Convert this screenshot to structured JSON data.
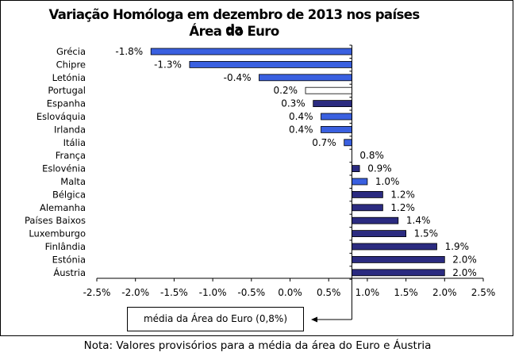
{
  "chart_data": {
    "type": "bar",
    "orientation": "horizontal",
    "title_line1": "Variação Homóloga em dezembro de 2013 nos países da",
    "title_line2": "Área do Euro",
    "categories": [
      "Grécia",
      "Chipre",
      "Letónia",
      "Portugal",
      "Espanha",
      "Eslováquia",
      "Irlanda",
      "Itália",
      "França",
      "Eslovénia",
      "Malta",
      "Bélgica",
      "Alemanha",
      "Países Baixos",
      "Luxemburgo",
      "Finlândia",
      "Estónia",
      "Áustria"
    ],
    "values": [
      -1.8,
      -1.3,
      -0.4,
      0.2,
      0.3,
      0.4,
      0.4,
      0.7,
      0.8,
      0.9,
      1.0,
      1.2,
      1.2,
      1.4,
      1.5,
      1.9,
      2.0,
      2.0
    ],
    "value_labels": [
      "-1.8%",
      "-1.3%",
      "-0.4%",
      "0.2%",
      "0.3%",
      "0.4%",
      "0.4%",
      "0.7%",
      "0.8%",
      "0.9%",
      "1.0%",
      "1.2%",
      "1.2%",
      "1.4%",
      "1.5%",
      "1.9%",
      "2.0%",
      "2.0%"
    ],
    "bar_colors": [
      "#3a60e0",
      "#3a60e0",
      "#3a60e0",
      "#ffffff",
      "#2b2b80",
      "#3a60e0",
      "#3a60e0",
      "#3a60e0",
      "#ffffff",
      "#2b2b80",
      "#3a60e0",
      "#2b2b80",
      "#2b2b80",
      "#2b2b80",
      "#2b2b80",
      "#2b2b80",
      "#2b2b80",
      "#2b2b80"
    ],
    "euro_area_mean": 0.8,
    "xlim": [
      -2.5,
      2.5
    ],
    "x_ticks": [
      -2.5,
      -2.0,
      -1.5,
      -1.0,
      -0.5,
      0.0,
      0.5,
      1.0,
      1.5,
      2.0,
      2.5
    ],
    "x_tick_labels": [
      "-2.5%",
      "-2.0%",
      "-1.5%",
      "-1.0%",
      "-0.5%",
      "0.0%",
      "0.5%",
      "1.0%",
      "1.5%",
      "2.0%",
      "2.5%"
    ],
    "legend_label": "média da Área do Euro (0,8%)",
    "note": "Nota: Valores provisórios para a média da área do Euro e Áustria"
  },
  "colors": {
    "light_bar": "#3a60e0",
    "dark_bar": "#2b2b80",
    "axis": "#000000"
  }
}
